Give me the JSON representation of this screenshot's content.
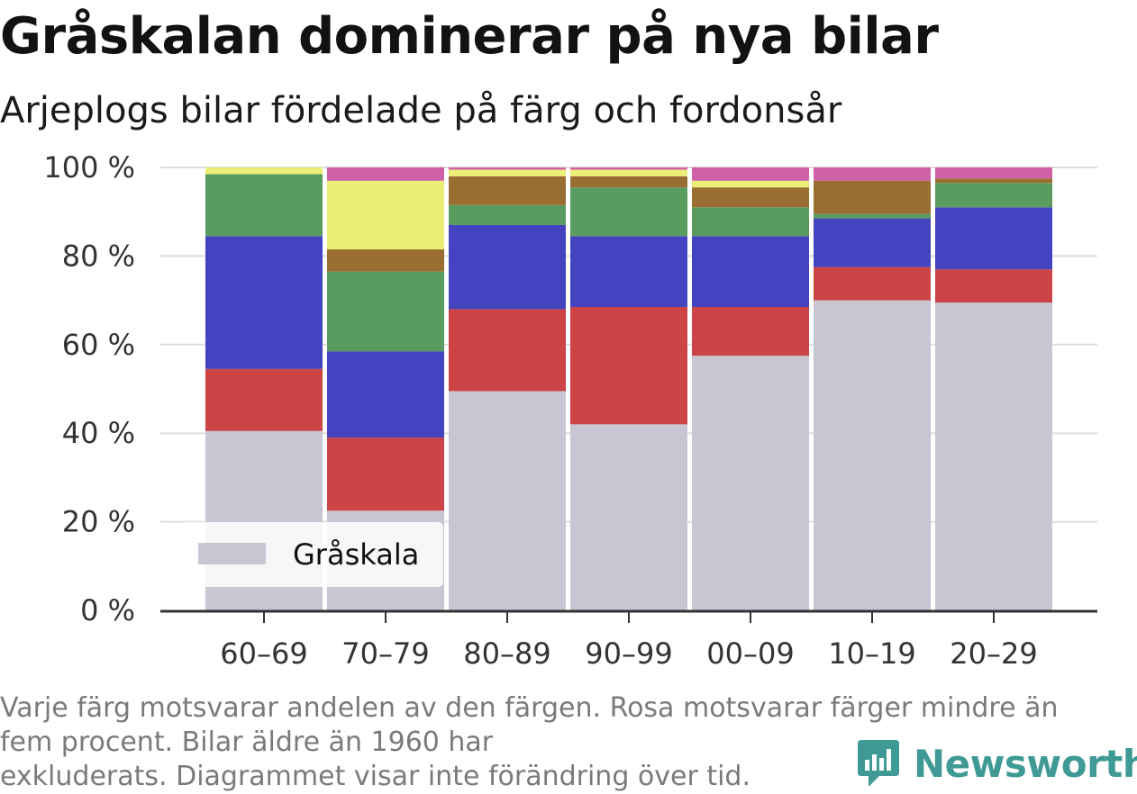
{
  "header": {
    "title": "Gråskalan dominerar på nya bilar",
    "subtitle": "Arjeplogs bilar fördelade på färg och fordonsår"
  },
  "chart_data": {
    "type": "bar",
    "stacked": true,
    "categories": [
      "60–69",
      "70–79",
      "80–89",
      "90–99",
      "00–09",
      "10–19",
      "20–29"
    ],
    "series": [
      {
        "name": "Gråskala",
        "color": "#c8c6d2",
        "values": [
          40.5,
          22.5,
          49.5,
          42,
          57.5,
          70,
          69.5
        ]
      },
      {
        "color": "#cc4446",
        "values": [
          14,
          16.5,
          18.5,
          26.5,
          11,
          7.5,
          7.5
        ]
      },
      {
        "color": "#4444c0",
        "values": [
          30,
          19.5,
          19,
          16,
          16,
          11,
          14
        ]
      },
      {
        "color": "#5a9c60",
        "values": [
          14,
          18,
          4.5,
          11,
          6.5,
          1,
          5.5
        ]
      },
      {
        "color": "#9a6e33",
        "values": [
          0,
          5,
          6.5,
          2.5,
          4.5,
          7.5,
          1
        ]
      },
      {
        "color": "#ebef75",
        "values": [
          1.5,
          15.5,
          1.5,
          1.5,
          1.5,
          0,
          0
        ]
      },
      {
        "color": "#d060a8",
        "values": [
          0,
          3,
          0.5,
          0.5,
          3,
          3,
          2.5
        ]
      }
    ],
    "y_ticks": [
      "0 %",
      "20 %",
      "40 %",
      "60 %",
      "80 %",
      "100 %"
    ],
    "ylim": [
      0,
      100
    ],
    "xlabel": "",
    "ylabel": "",
    "grid": true,
    "legend": {
      "position": "bottom-left",
      "entries": [
        "Gråskala"
      ]
    }
  },
  "footnote": {
    "line1": "Varje färg motsvarar andelen av den färgen. Rosa motsvarar färger mindre än",
    "line2": "fem procent. Bilar äldre än 1960 har",
    "line3": "exkluderats. Diagrammet visar inte förändring över tid."
  },
  "brand": {
    "name": "Newsworthy",
    "icon": "newsworthy-logo-icon",
    "color": "#3f9a95"
  }
}
